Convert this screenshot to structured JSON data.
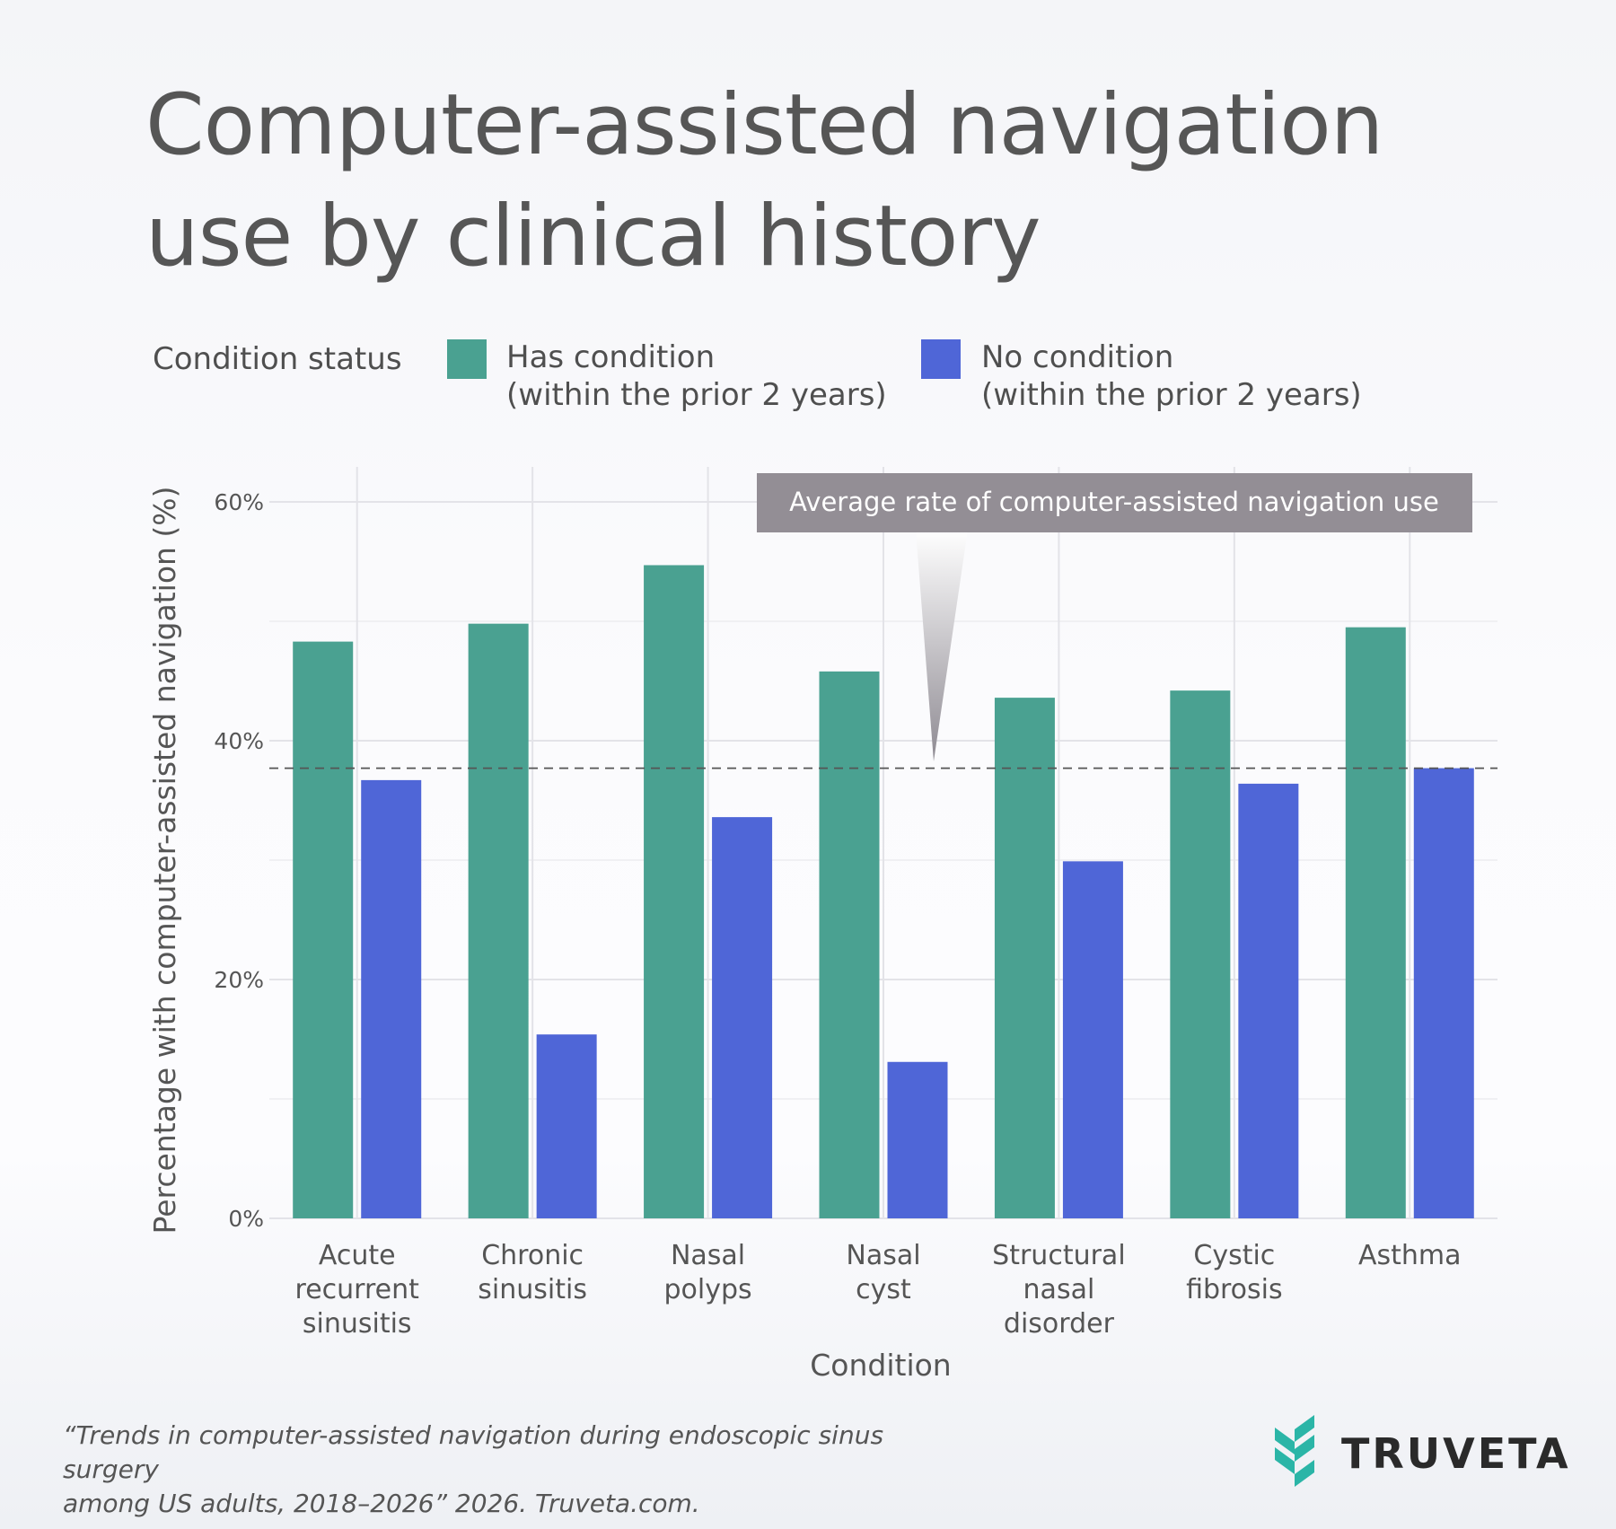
{
  "title_line1": "Computer-assisted navigation",
  "title_line2": "use by clinical history",
  "legend": {
    "title": "Condition status",
    "items": [
      {
        "label_line1": "Has condition",
        "label_line2": "(within the prior 2 years)",
        "color": "#4aa191"
      },
      {
        "label_line1": "No condition",
        "label_line2": "(within the prior 2 years)",
        "color": "#4f66d7"
      }
    ]
  },
  "chart_data": {
    "type": "bar",
    "title": "Computer-assisted navigation use by clinical history",
    "xlabel": "Condition",
    "ylabel": "Percentage with computer-assisted navigation (%)",
    "ylim": [
      0,
      62
    ],
    "yticks": [
      0,
      20,
      40,
      60
    ],
    "ytick_labels": [
      "0%",
      "20%",
      "40%",
      "60%"
    ],
    "grid": true,
    "categories": [
      [
        "Acute",
        "recurrent",
        "sinusitis"
      ],
      [
        "Chronic",
        "sinusitis"
      ],
      [
        "Nasal",
        "polyps"
      ],
      [
        "Nasal",
        "cyst"
      ],
      [
        "Structural",
        "nasal",
        "disorder"
      ],
      [
        "Cystic",
        "fibrosis"
      ],
      [
        "Asthma"
      ]
    ],
    "series": [
      {
        "name": "Has condition (within the prior 2 years)",
        "color": "#4aa191",
        "values": [
          48.3,
          49.8,
          54.7,
          45.8,
          43.6,
          44.2,
          49.5
        ]
      },
      {
        "name": "No condition (within the prior 2 years)",
        "color": "#4f66d7",
        "values": [
          36.7,
          15.4,
          33.6,
          13.1,
          29.9,
          36.4,
          37.7
        ]
      }
    ],
    "reference_line": {
      "value": 37.7,
      "style": "dashed"
    },
    "annotation": {
      "text": "Average rate of computer-assisted navigation use",
      "points_to": "average line"
    }
  },
  "citation_line1": "“Trends in computer-assisted navigation during endoscopic sinus surgery",
  "citation_line2": "among US adults, 2018–2026” 2026. Truveta.com.",
  "brand": {
    "name": "TRUVETA",
    "logo_color": "#2bb5a7"
  }
}
